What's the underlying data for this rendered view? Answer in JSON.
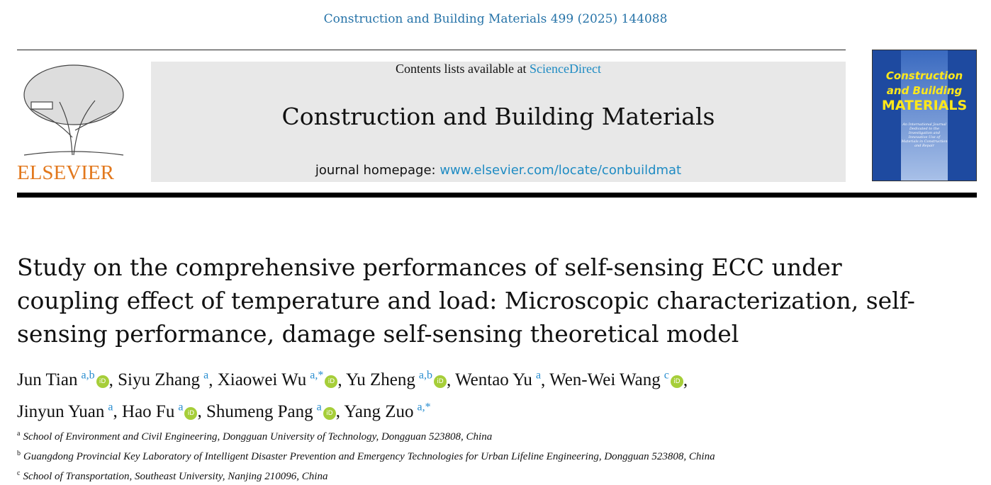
{
  "citation": "Construction and Building Materials 499 (2025) 144088",
  "publisher_logo": "ELSEVIER",
  "masthead": {
    "contents_prefix": "Contents lists available at ",
    "contents_link": "ScienceDirect",
    "journal_title": "Construction and Building Materials",
    "homepage_prefix": "journal homepage: ",
    "homepage_link": "www.elsevier.com/locate/conbuildmat"
  },
  "cover": {
    "line1": "Construction",
    "line2": "and Building",
    "line3": "MATERIALS",
    "subtitle": "An International Journal Dedicated to the Investigation and Innovative Use of Materials in Construction and Repair",
    "color": "#1e4aa0",
    "text_color": "#ffe81a"
  },
  "title": "Study on the comprehensive performances of self-sensing ECC under coupling effect of temperature and load: Microscopic characterization, self-sensing performance, damage self-sensing theoretical model",
  "authors": [
    {
      "name": "Jun Tian",
      "sup": "a,b",
      "orcid": true
    },
    {
      "name": "Siyu Zhang",
      "sup": "a",
      "orcid": false
    },
    {
      "name": "Xiaowei Wu",
      "sup": "a,*",
      "orcid": true
    },
    {
      "name": "Yu Zheng",
      "sup": "a,b",
      "orcid": true
    },
    {
      "name": "Wentao Yu",
      "sup": "a",
      "orcid": false
    },
    {
      "name": "Wen-Wei Wang",
      "sup": "c",
      "orcid": true
    },
    {
      "name": "Jinyun Yuan",
      "sup": "a",
      "orcid": false
    },
    {
      "name": "Hao Fu",
      "sup": "a",
      "orcid": true
    },
    {
      "name": "Shumeng Pang",
      "sup": "a",
      "orcid": true
    },
    {
      "name": "Yang Zuo",
      "sup": "a,*",
      "orcid": false
    }
  ],
  "orcid_label": "iD",
  "affiliations": [
    {
      "key": "a",
      "text": "School of Environment and Civil Engineering, Dongguan University of Technology, Dongguan 523808, China"
    },
    {
      "key": "b",
      "text": "Guangdong Provincial Key Laboratory of Intelligent Disaster Prevention and Emergency Technologies for Urban Lifeline Engineering, Dongguan 523808, China"
    },
    {
      "key": "c",
      "text": "School of Transportation, Southeast University, Nanjing 210096, China"
    }
  ]
}
